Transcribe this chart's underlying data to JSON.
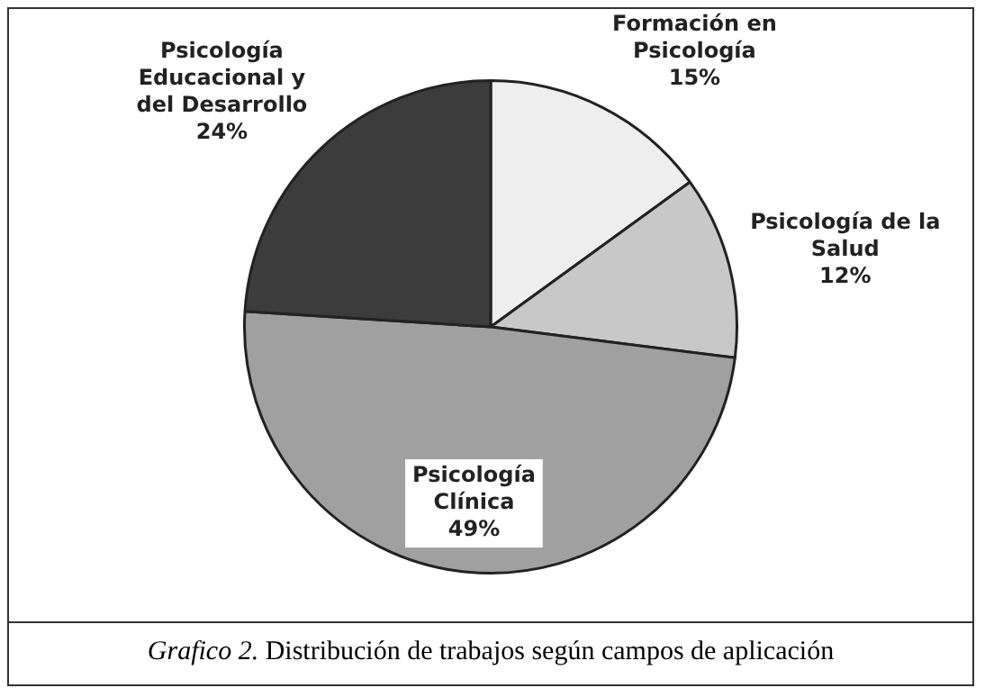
{
  "chart_data": {
    "type": "pie",
    "categories": [
      "Formación en Psicología",
      "Psicología de la Salud",
      "Psicología Clínica",
      "Psicología Educacional y del Desarrollo"
    ],
    "values": [
      15,
      12,
      49,
      24
    ],
    "value_labels": [
      "15%",
      "12%",
      "49%",
      "24%"
    ],
    "colors": [
      "#eeeeee",
      "#c8c8c8",
      "#a0a0a0",
      "#3c3c3c"
    ],
    "legend": false,
    "annotations": [
      "Grafico 2.",
      "Distribución de trabajos según campos de aplicación"
    ]
  }
}
